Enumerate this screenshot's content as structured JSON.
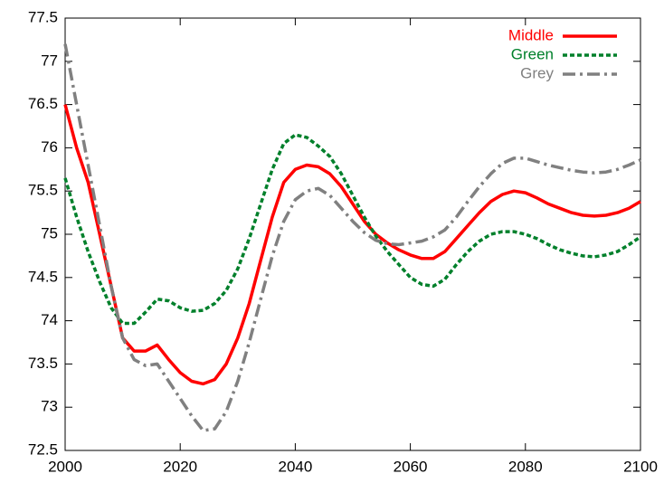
{
  "chart_data": {
    "type": "line",
    "x": [
      2000,
      2002,
      2004,
      2006,
      2008,
      2010,
      2012,
      2014,
      2016,
      2018,
      2020,
      2022,
      2024,
      2026,
      2028,
      2030,
      2032,
      2034,
      2036,
      2038,
      2040,
      2042,
      2044,
      2046,
      2048,
      2050,
      2052,
      2054,
      2056,
      2058,
      2060,
      2062,
      2064,
      2066,
      2068,
      2070,
      2072,
      2074,
      2076,
      2078,
      2080,
      2082,
      2084,
      2086,
      2088,
      2090,
      2092,
      2094,
      2096,
      2098,
      2100
    ],
    "series": [
      {
        "name": "Middle",
        "color": "#ff0000",
        "dash": "solid",
        "values": [
          76.5,
          76.0,
          75.6,
          75.0,
          74.4,
          73.8,
          73.65,
          73.65,
          73.72,
          73.55,
          73.4,
          73.3,
          73.27,
          73.32,
          73.5,
          73.8,
          74.2,
          74.7,
          75.2,
          75.6,
          75.75,
          75.8,
          75.78,
          75.7,
          75.55,
          75.35,
          75.15,
          75.0,
          74.9,
          74.82,
          74.76,
          74.72,
          74.72,
          74.8,
          74.95,
          75.1,
          75.25,
          75.38,
          75.46,
          75.5,
          75.48,
          75.42,
          75.35,
          75.3,
          75.25,
          75.22,
          75.21,
          75.22,
          75.25,
          75.3,
          75.38
        ]
      },
      {
        "name": "Green",
        "color": "#00802b",
        "dash": "dotted",
        "values": [
          75.65,
          75.2,
          74.8,
          74.45,
          74.15,
          73.97,
          73.97,
          74.1,
          74.25,
          74.23,
          74.15,
          74.11,
          74.12,
          74.2,
          74.35,
          74.6,
          74.95,
          75.35,
          75.75,
          76.05,
          76.15,
          76.12,
          76.02,
          75.9,
          75.7,
          75.45,
          75.2,
          74.98,
          74.8,
          74.65,
          74.5,
          74.42,
          74.4,
          74.48,
          74.65,
          74.8,
          74.92,
          75.0,
          75.03,
          75.03,
          75.0,
          74.95,
          74.88,
          74.82,
          74.78,
          74.75,
          74.74,
          74.76,
          74.8,
          74.88,
          74.97
        ]
      },
      {
        "name": "Grey",
        "color": "#808080",
        "dash": "dashdot",
        "values": [
          77.2,
          76.5,
          75.8,
          75.1,
          74.4,
          73.8,
          73.55,
          73.48,
          73.5,
          73.3,
          73.1,
          72.9,
          72.73,
          72.75,
          72.95,
          73.3,
          73.75,
          74.25,
          74.75,
          75.15,
          75.4,
          75.5,
          75.53,
          75.45,
          75.3,
          75.15,
          75.02,
          74.93,
          74.89,
          74.88,
          74.9,
          74.92,
          74.97,
          75.05,
          75.2,
          75.38,
          75.55,
          75.7,
          75.82,
          75.88,
          75.88,
          75.84,
          75.8,
          75.77,
          75.74,
          75.72,
          75.71,
          75.72,
          75.75,
          75.8,
          75.86
        ]
      }
    ],
    "xlim": [
      2000,
      2100
    ],
    "xticks": [
      2000,
      2020,
      2040,
      2060,
      2080,
      2100
    ],
    "ylim": [
      72.5,
      77.5
    ],
    "yticks": [
      72.5,
      73,
      73.5,
      74,
      74.5,
      75,
      75.5,
      76,
      76.5,
      77,
      77.5
    ],
    "legend": "top-right"
  }
}
